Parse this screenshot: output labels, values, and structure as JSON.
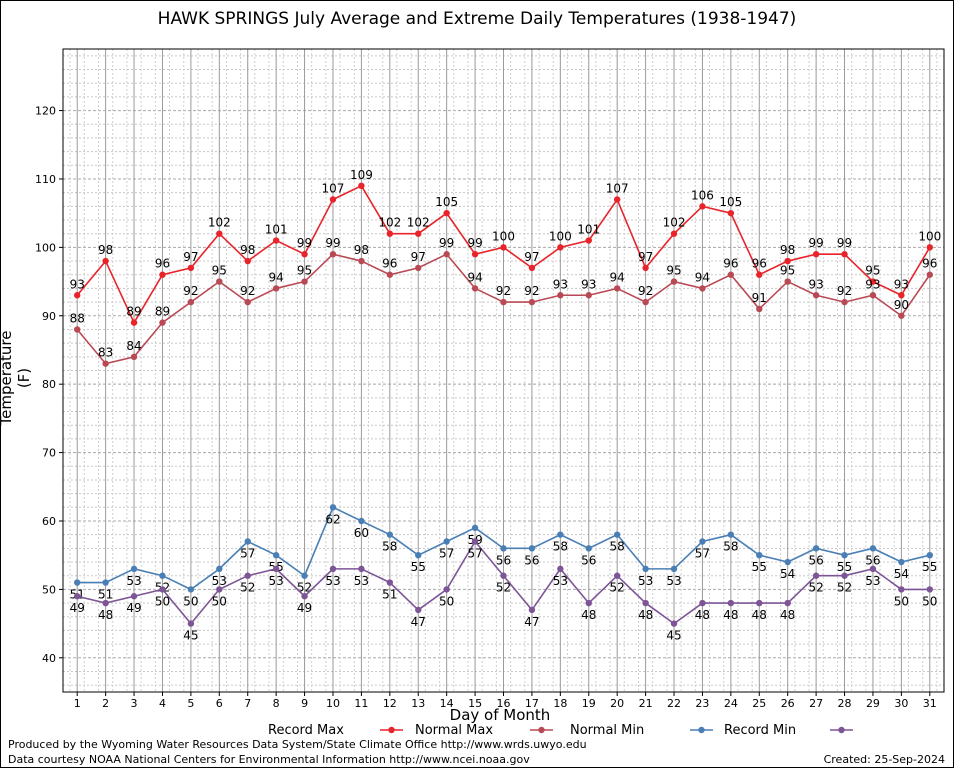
{
  "chart_data": {
    "type": "line",
    "title": "HAWK SPRINGS July Average and Extreme Daily Temperatures (1938-1947)",
    "xlabel": "Day of Month",
    "ylabel": "Temperature (F)",
    "x": [
      1,
      2,
      3,
      4,
      5,
      6,
      7,
      8,
      9,
      10,
      11,
      12,
      13,
      14,
      15,
      16,
      17,
      18,
      19,
      20,
      21,
      22,
      23,
      24,
      25,
      26,
      27,
      28,
      29,
      30,
      31
    ],
    "xlim": [
      0.5,
      31.5
    ],
    "ylim": [
      35,
      129
    ],
    "yticks": [
      40,
      50,
      60,
      70,
      80,
      90,
      100,
      110,
      120
    ],
    "grid": true,
    "legend_position": "bottom",
    "series": [
      {
        "name": "Record Max",
        "color": "#e8232a",
        "values": [
          93,
          98,
          89,
          96,
          97,
          102,
          98,
          101,
          99,
          107,
          109,
          102,
          102,
          105,
          99,
          100,
          97,
          100,
          101,
          107,
          97,
          102,
          106,
          105,
          96,
          98,
          99,
          99,
          95,
          93,
          100
        ]
      },
      {
        "name": "Normal Max",
        "color": "#b94a55",
        "values": [
          88,
          83,
          84,
          89,
          92,
          95,
          92,
          94,
          95,
          99,
          98,
          96,
          97,
          99,
          94,
          92,
          92,
          93,
          93,
          94,
          92,
          95,
          94,
          96,
          91,
          95,
          93,
          92,
          93,
          90,
          96
        ]
      },
      {
        "name": "Normal Min",
        "color": "#4a7fb5",
        "values": [
          51,
          51,
          53,
          52,
          50,
          53,
          57,
          55,
          52,
          62,
          60,
          58,
          55,
          57,
          59,
          56,
          56,
          58,
          56,
          58,
          53,
          53,
          57,
          58,
          55,
          54,
          56,
          55,
          56,
          54,
          55
        ]
      },
      {
        "name": "Record Min",
        "color": "#7d5596",
        "values": [
          49,
          48,
          49,
          50,
          45,
          50,
          52,
          53,
          49,
          53,
          53,
          51,
          47,
          50,
          57,
          52,
          47,
          53,
          48,
          52,
          48,
          45,
          48,
          48,
          48,
          48,
          52,
          52,
          53,
          50,
          50
        ]
      }
    ]
  },
  "footer": {
    "produced_by": "Produced by the Wyoming Water Resources Data System/State Climate Office http://www.wrds.uwyo.edu",
    "data_courtesy": "Data courtesy NOAA National Centers for Environmental Information http://www.ncei.noaa.gov",
    "created": "Created: 25-Sep-2024"
  }
}
